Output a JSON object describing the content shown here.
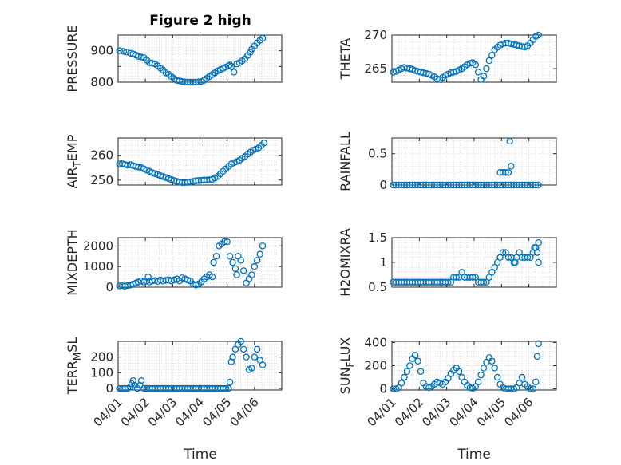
{
  "title": "Figure 2 high",
  "xlabel": "Time",
  "colors": {
    "marker": "#0072BD",
    "axis": "#262626",
    "grid": "#d0d0d0"
  },
  "xticks": [
    "04/01",
    "04/02",
    "04/03",
    "04/04",
    "04/05",
    "04/06"
  ],
  "chart_data": [
    {
      "type": "scatter",
      "ylabel": "PRESSURE",
      "ylim": [
        800,
        950
      ],
      "yticks": [
        800,
        850,
        900
      ],
      "ytick_labels": [
        "800",
        "",
        "900"
      ],
      "x": [
        0.05,
        0.2,
        0.3,
        0.45,
        0.55,
        0.65,
        0.75,
        0.85,
        0.95,
        1.05,
        1.15,
        1.25,
        1.35,
        1.45,
        1.55,
        1.65,
        1.75,
        1.85,
        1.95,
        2.05,
        2.15,
        2.25,
        2.35,
        2.45,
        2.55,
        2.65,
        2.75,
        2.85,
        2.95,
        3.05,
        3.15,
        3.25,
        3.35,
        3.45,
        3.55,
        3.65,
        3.75,
        3.85,
        3.95,
        4.05,
        4.1,
        4.15,
        4.25,
        4.35,
        4.45,
        4.55,
        4.65,
        4.75,
        4.85,
        4.9,
        5.0,
        5.1,
        5.2,
        5.3
      ],
      "y": [
        900,
        898,
        896,
        892,
        890,
        886,
        882,
        880,
        878,
        870,
        862,
        860,
        858,
        852,
        845,
        838,
        830,
        825,
        818,
        812,
        806,
        804,
        802,
        801,
        800,
        800,
        800,
        800,
        801,
        802,
        806,
        812,
        818,
        824,
        830,
        836,
        840,
        844,
        848,
        852,
        855,
        850,
        832,
        858,
        862,
        868,
        875,
        885,
        895,
        905,
        915,
        925,
        933,
        940
      ]
    },
    {
      "type": "scatter",
      "ylabel": "THETA",
      "ylim": [
        263,
        270
      ],
      "yticks": [
        265,
        270
      ],
      "ytick_labels": [
        "265",
        "270"
      ],
      "x": [
        0.05,
        0.15,
        0.25,
        0.35,
        0.45,
        0.55,
        0.65,
        0.75,
        0.85,
        0.95,
        1.05,
        1.15,
        1.25,
        1.35,
        1.45,
        1.55,
        1.65,
        1.75,
        1.85,
        1.95,
        2.05,
        2.15,
        2.25,
        2.35,
        2.45,
        2.55,
        2.65,
        2.75,
        2.85,
        2.95,
        3.05,
        3.15,
        3.25,
        3.35,
        3.45,
        3.55,
        3.65,
        3.75,
        3.85,
        3.95,
        4.05,
        4.15,
        4.25,
        4.35,
        4.45,
        4.55,
        4.65,
        4.75,
        4.85,
        4.95,
        5.05,
        5.15,
        5.25,
        5.35
      ],
      "y": [
        264.5,
        264.6,
        264.8,
        265.0,
        265.2,
        265.1,
        265.0,
        264.9,
        264.7,
        264.6,
        264.5,
        264.4,
        264.3,
        264.2,
        264.0,
        263.8,
        263.5,
        263.4,
        263.7,
        264.0,
        264.2,
        264.4,
        264.5,
        264.6,
        264.8,
        265.0,
        265.3,
        265.6,
        265.8,
        265.9,
        265.6,
        264.5,
        263.4,
        263.9,
        265.0,
        266.2,
        267.0,
        267.8,
        268.2,
        268.5,
        268.7,
        268.8,
        268.8,
        268.7,
        268.6,
        268.5,
        268.4,
        268.3,
        268.2,
        268.4,
        268.8,
        269.3,
        269.8,
        270.0
      ]
    },
    {
      "type": "scatter",
      "ylabel": "AIR_TEMP",
      "ylim": [
        248,
        267
      ],
      "yticks": [
        250,
        260
      ],
      "ytick_labels": [
        "250",
        "260"
      ],
      "x": [
        0.05,
        0.15,
        0.25,
        0.35,
        0.45,
        0.55,
        0.65,
        0.75,
        0.85,
        0.95,
        1.05,
        1.15,
        1.25,
        1.35,
        1.45,
        1.55,
        1.65,
        1.75,
        1.85,
        1.95,
        2.05,
        2.15,
        2.25,
        2.35,
        2.45,
        2.55,
        2.65,
        2.75,
        2.85,
        2.95,
        3.05,
        3.15,
        3.25,
        3.35,
        3.45,
        3.55,
        3.65,
        3.75,
        3.85,
        3.95,
        4.05,
        4.15,
        4.25,
        4.35,
        4.45,
        4.55,
        4.65,
        4.75,
        4.85,
        4.95,
        5.05,
        5.15,
        5.25,
        5.35
      ],
      "y": [
        256.5,
        256.6,
        256.3,
        256.0,
        256.2,
        255.8,
        255.5,
        255.2,
        255.0,
        254.5,
        254.0,
        253.5,
        253.0,
        252.6,
        252.2,
        251.8,
        251.4,
        251.0,
        250.6,
        250.2,
        249.8,
        249.5,
        249.2,
        249.0,
        249.0,
        249.1,
        249.3,
        249.5,
        249.7,
        249.8,
        249.9,
        250.0,
        250.0,
        250.1,
        250.3,
        250.8,
        251.5,
        252.5,
        253.5,
        254.5,
        255.5,
        256.5,
        257.0,
        257.5,
        258.0,
        258.8,
        259.5,
        260.5,
        261.3,
        262.0,
        262.5,
        263.0,
        264.0,
        265.0
      ]
    },
    {
      "type": "scatter",
      "ylabel": "RAINFALL",
      "ylim": [
        0,
        0.75
      ],
      "yticks": [
        0,
        0.5
      ],
      "ytick_labels": [
        "0",
        "0.5"
      ],
      "x": [
        0.05,
        0.15,
        0.25,
        0.35,
        0.45,
        0.55,
        0.65,
        0.75,
        0.85,
        0.95,
        1.05,
        1.15,
        1.25,
        1.35,
        1.45,
        1.55,
        1.65,
        1.75,
        1.85,
        1.95,
        2.05,
        2.15,
        2.25,
        2.35,
        2.45,
        2.55,
        2.65,
        2.75,
        2.85,
        2.95,
        3.05,
        3.15,
        3.25,
        3.35,
        3.45,
        3.55,
        3.65,
        3.75,
        3.85,
        3.95,
        4.05,
        4.15,
        4.25,
        4.35,
        4.45,
        4.55,
        4.65,
        4.75,
        4.85,
        4.95,
        5.05,
        5.15,
        5.25,
        5.35,
        3.95,
        4.05,
        4.15,
        4.25,
        4.3,
        4.35
      ],
      "y": [
        0,
        0,
        0,
        0,
        0,
        0,
        0,
        0,
        0,
        0,
        0,
        0,
        0,
        0,
        0,
        0,
        0,
        0,
        0,
        0,
        0,
        0,
        0,
        0,
        0,
        0,
        0,
        0,
        0,
        0,
        0,
        0,
        0,
        0,
        0,
        0,
        0,
        0,
        0,
        0,
        0,
        0,
        0,
        0,
        0,
        0,
        0,
        0,
        0,
        0,
        0,
        0,
        0,
        0,
        0.2,
        0.2,
        0.2,
        0.2,
        0.7,
        0.3
      ]
    },
    {
      "type": "scatter",
      "ylabel": "MIXDEPTH",
      "ylim": [
        0,
        2400
      ],
      "yticks": [
        0,
        1000,
        2000
      ],
      "ytick_labels": [
        "0",
        "1000",
        "2000"
      ],
      "x": [
        0.05,
        0.15,
        0.25,
        0.35,
        0.45,
        0.55,
        0.65,
        0.75,
        0.85,
        0.95,
        1.05,
        1.1,
        1.15,
        1.25,
        1.35,
        1.45,
        1.55,
        1.65,
        1.75,
        1.85,
        1.95,
        2.05,
        2.15,
        2.25,
        2.35,
        2.45,
        2.55,
        2.65,
        2.75,
        2.85,
        2.95,
        3.05,
        3.15,
        3.25,
        3.35,
        3.45,
        3.5,
        3.6,
        3.7,
        3.8,
        3.9,
        4.0,
        4.1,
        4.2,
        4.3,
        4.35,
        4.4,
        4.5,
        4.6,
        4.7,
        4.8,
        4.9,
        5.0,
        5.1,
        5.2,
        5.3
      ],
      "y": [
        60,
        70,
        50,
        80,
        100,
        150,
        200,
        250,
        300,
        250,
        300,
        500,
        250,
        300,
        320,
        280,
        350,
        300,
        330,
        360,
        300,
        350,
        400,
        300,
        450,
        400,
        350,
        300,
        150,
        100,
        150,
        250,
        400,
        500,
        600,
        500,
        1200,
        1500,
        2000,
        2100,
        2200,
        2200,
        1500,
        1200,
        900,
        600,
        1500,
        1300,
        800,
        200,
        400,
        600,
        1000,
        1300,
        1600,
        2000
      ]
    },
    {
      "type": "scatter",
      "ylabel": "H2OMIXRA",
      "ylim": [
        0.5,
        1.5
      ],
      "yticks": [
        0.5,
        1,
        1.5
      ],
      "ytick_labels": [
        "0.5",
        "1",
        "1.5"
      ],
      "x": [
        0.05,
        0.15,
        0.25,
        0.35,
        0.45,
        0.55,
        0.65,
        0.75,
        0.85,
        0.95,
        1.05,
        1.15,
        1.25,
        1.35,
        1.45,
        1.55,
        1.65,
        1.75,
        1.85,
        1.95,
        2.05,
        2.15,
        2.25,
        2.35,
        2.45,
        2.55,
        2.65,
        2.75,
        2.85,
        2.95,
        3.05,
        3.15,
        3.25,
        3.35,
        3.45,
        3.55,
        3.65,
        3.75,
        3.85,
        3.95,
        4.05,
        4.15,
        4.25,
        4.35,
        4.45,
        4.55,
        4.65,
        4.75,
        4.85,
        4.95,
        5.05,
        5.15,
        5.25,
        5.35,
        4.5,
        5.2,
        5.3,
        5.35
      ],
      "y": [
        0.6,
        0.6,
        0.6,
        0.6,
        0.6,
        0.6,
        0.6,
        0.6,
        0.6,
        0.6,
        0.6,
        0.6,
        0.6,
        0.6,
        0.6,
        0.6,
        0.6,
        0.6,
        0.6,
        0.6,
        0.6,
        0.6,
        0.7,
        0.7,
        0.7,
        0.8,
        0.7,
        0.7,
        0.7,
        0.7,
        0.7,
        0.6,
        0.6,
        0.6,
        0.6,
        0.7,
        0.8,
        0.9,
        1.0,
        1.1,
        1.2,
        1.2,
        1.1,
        1.1,
        1.0,
        1.1,
        1.2,
        1.1,
        1.1,
        1.1,
        1.1,
        1.2,
        1.3,
        1.4,
        1.0,
        1.3,
        1.2,
        1.0
      ]
    },
    {
      "type": "scatter",
      "ylabel": "TERR_MSL",
      "ylim": [
        -10,
        300
      ],
      "yticks": [
        0,
        100,
        200
      ],
      "ytick_labels": [
        "0",
        "100",
        "200"
      ],
      "x": [
        0.05,
        0.15,
        0.25,
        0.35,
        0.45,
        0.5,
        0.55,
        0.6,
        0.7,
        0.8,
        0.85,
        0.95,
        1.05,
        1.15,
        1.25,
        1.35,
        1.45,
        1.55,
        1.65,
        1.75,
        1.85,
        1.95,
        2.05,
        2.15,
        2.25,
        2.35,
        2.45,
        2.55,
        2.65,
        2.75,
        2.85,
        2.95,
        3.05,
        3.15,
        3.25,
        3.35,
        3.45,
        3.55,
        3.65,
        3.75,
        3.85,
        3.95,
        4.05,
        4.1,
        4.15,
        4.2,
        4.3,
        4.4,
        4.5,
        4.6,
        4.7,
        4.8,
        4.9,
        5.0,
        5.1,
        5.2,
        5.3
      ],
      "y": [
        0,
        0,
        0,
        0,
        10,
        30,
        50,
        20,
        0,
        20,
        50,
        0,
        0,
        0,
        0,
        0,
        0,
        0,
        0,
        0,
        0,
        0,
        0,
        0,
        0,
        0,
        0,
        0,
        0,
        0,
        0,
        0,
        0,
        0,
        0,
        0,
        0,
        0,
        0,
        0,
        0,
        0,
        0,
        40,
        170,
        200,
        250,
        280,
        300,
        250,
        200,
        120,
        130,
        200,
        250,
        180,
        150
      ]
    },
    {
      "type": "scatter",
      "ylabel": "SUN_FLUX",
      "ylim": [
        -10,
        410
      ],
      "yticks": [
        0,
        200,
        400
      ],
      "ytick_labels": [
        "0",
        "200",
        "400"
      ],
      "x": [
        0.05,
        0.15,
        0.25,
        0.35,
        0.45,
        0.55,
        0.65,
        0.75,
        0.85,
        0.95,
        1.05,
        1.15,
        1.25,
        1.35,
        1.45,
        1.55,
        1.65,
        1.75,
        1.85,
        1.95,
        2.05,
        2.15,
        2.25,
        2.35,
        2.45,
        2.55,
        2.65,
        2.75,
        2.85,
        2.95,
        3.05,
        3.15,
        3.25,
        3.35,
        3.45,
        3.55,
        3.65,
        3.75,
        3.85,
        3.95,
        4.05,
        4.15,
        4.25,
        4.35,
        4.45,
        4.55,
        4.65,
        4.75,
        4.85,
        4.95,
        5.05,
        5.15,
        5.25,
        5.3,
        5.35
      ],
      "y": [
        0,
        0,
        10,
        50,
        100,
        150,
        200,
        260,
        290,
        240,
        150,
        50,
        20,
        10,
        20,
        40,
        60,
        50,
        40,
        60,
        90,
        130,
        160,
        180,
        150,
        100,
        60,
        30,
        10,
        5,
        20,
        60,
        120,
        180,
        230,
        270,
        240,
        180,
        100,
        40,
        10,
        0,
        0,
        0,
        0,
        10,
        50,
        100,
        40,
        20,
        0,
        0,
        60,
        280,
        390
      ]
    }
  ]
}
